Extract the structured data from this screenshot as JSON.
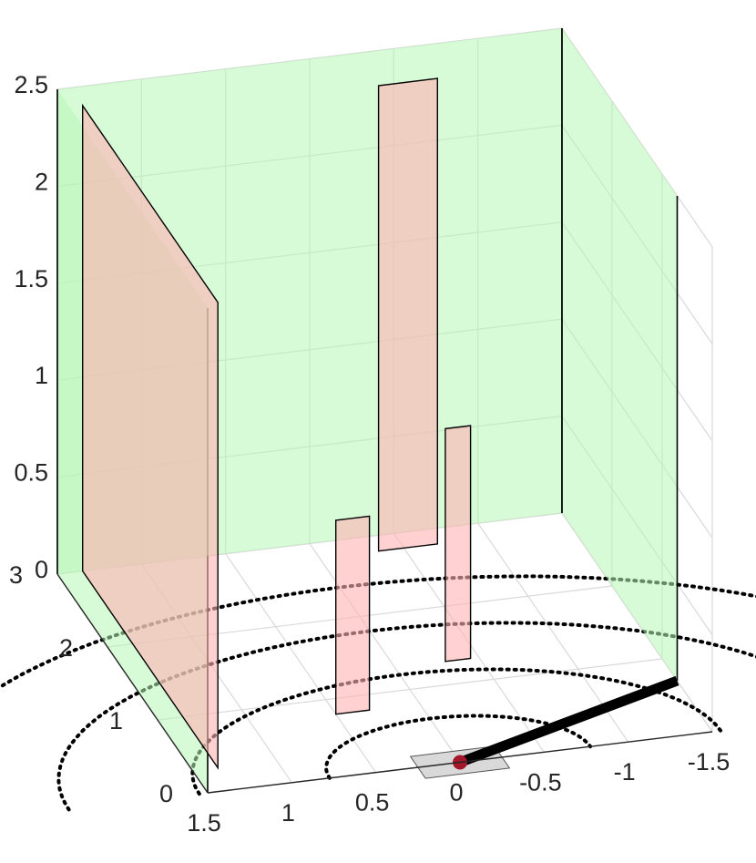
{
  "chart_data": {
    "type": "3d-scene",
    "title": "",
    "xlabel": "",
    "ylabel": "",
    "zlabel": "",
    "xlim": [
      -1.5,
      1.5
    ],
    "ylim": [
      0,
      3
    ],
    "zlim": [
      0,
      2.5
    ],
    "x_ticks": [
      "-1.5",
      "-1",
      "-0.5",
      "0",
      "0.5",
      "1",
      "1.5"
    ],
    "y_ticks": [
      "0",
      "1",
      "2",
      "3"
    ],
    "z_ticks": [
      "0",
      "0.5",
      "1",
      "1.5",
      "2",
      "2.5"
    ],
    "grid": true,
    "colors": {
      "green_surface": "#b6f5b6",
      "red_surface": "#ffb3b3",
      "start_marker": "#a3162c",
      "base_patch": "#d9d9d9"
    },
    "green_surfaces": [
      {
        "name": "left-wall",
        "points": [
          [
            1.5,
            0,
            0
          ],
          [
            1.5,
            3,
            0
          ],
          [
            1.5,
            3,
            2.5
          ],
          [
            1.5,
            0,
            2.5
          ]
        ]
      },
      {
        "name": "back-wall",
        "points": [
          [
            1.5,
            3,
            0
          ],
          [
            -1.5,
            3,
            0
          ],
          [
            -1.5,
            3,
            2.5
          ],
          [
            1.5,
            3,
            2.5
          ]
        ]
      },
      {
        "name": "right-wall",
        "points": [
          [
            -1.5,
            3,
            0
          ],
          [
            -1.5,
            0.7,
            0
          ],
          [
            -1.5,
            0.7,
            2.5
          ],
          [
            -1.5,
            3,
            2.5
          ]
        ]
      }
    ],
    "red_surfaces": [
      {
        "name": "obstacle-left",
        "points": [
          [
            1.35,
            3,
            0
          ],
          [
            1.35,
            0.3,
            0
          ],
          [
            1.35,
            0.3,
            2.4
          ],
          [
            1.35,
            3,
            2.4
          ]
        ]
      },
      {
        "name": "obstacle-center",
        "points": [
          [
            0.5,
            0.8,
            0
          ],
          [
            0.3,
            0.8,
            0
          ],
          [
            0.3,
            0.8,
            1.0
          ],
          [
            0.5,
            0.8,
            1.0
          ]
        ]
      },
      {
        "name": "obstacle-back-tall",
        "points": [
          [
            -0.35,
            2.8,
            0
          ],
          [
            -0.7,
            2.8,
            0
          ],
          [
            -0.7,
            2.8,
            2.4
          ],
          [
            -0.35,
            2.8,
            2.4
          ]
        ]
      },
      {
        "name": "obstacle-back-short",
        "points": [
          [
            -0.3,
            1.3,
            0
          ],
          [
            -0.45,
            1.3,
            0
          ],
          [
            -0.45,
            1.3,
            1.2
          ],
          [
            -0.3,
            1.3,
            1.2
          ]
        ]
      }
    ],
    "dotted_arcs_radii": [
      0.5,
      1.0,
      1.5,
      2.0
    ],
    "base_patch": {
      "x": [
        -0.25,
        0.25
      ],
      "y": [
        -0.15,
        0.15
      ]
    },
    "start_point": [
      0,
      0,
      0
    ],
    "path": {
      "from": [
        0,
        0,
        0
      ],
      "to": [
        -1.5,
        0.7,
        0
      ]
    }
  }
}
